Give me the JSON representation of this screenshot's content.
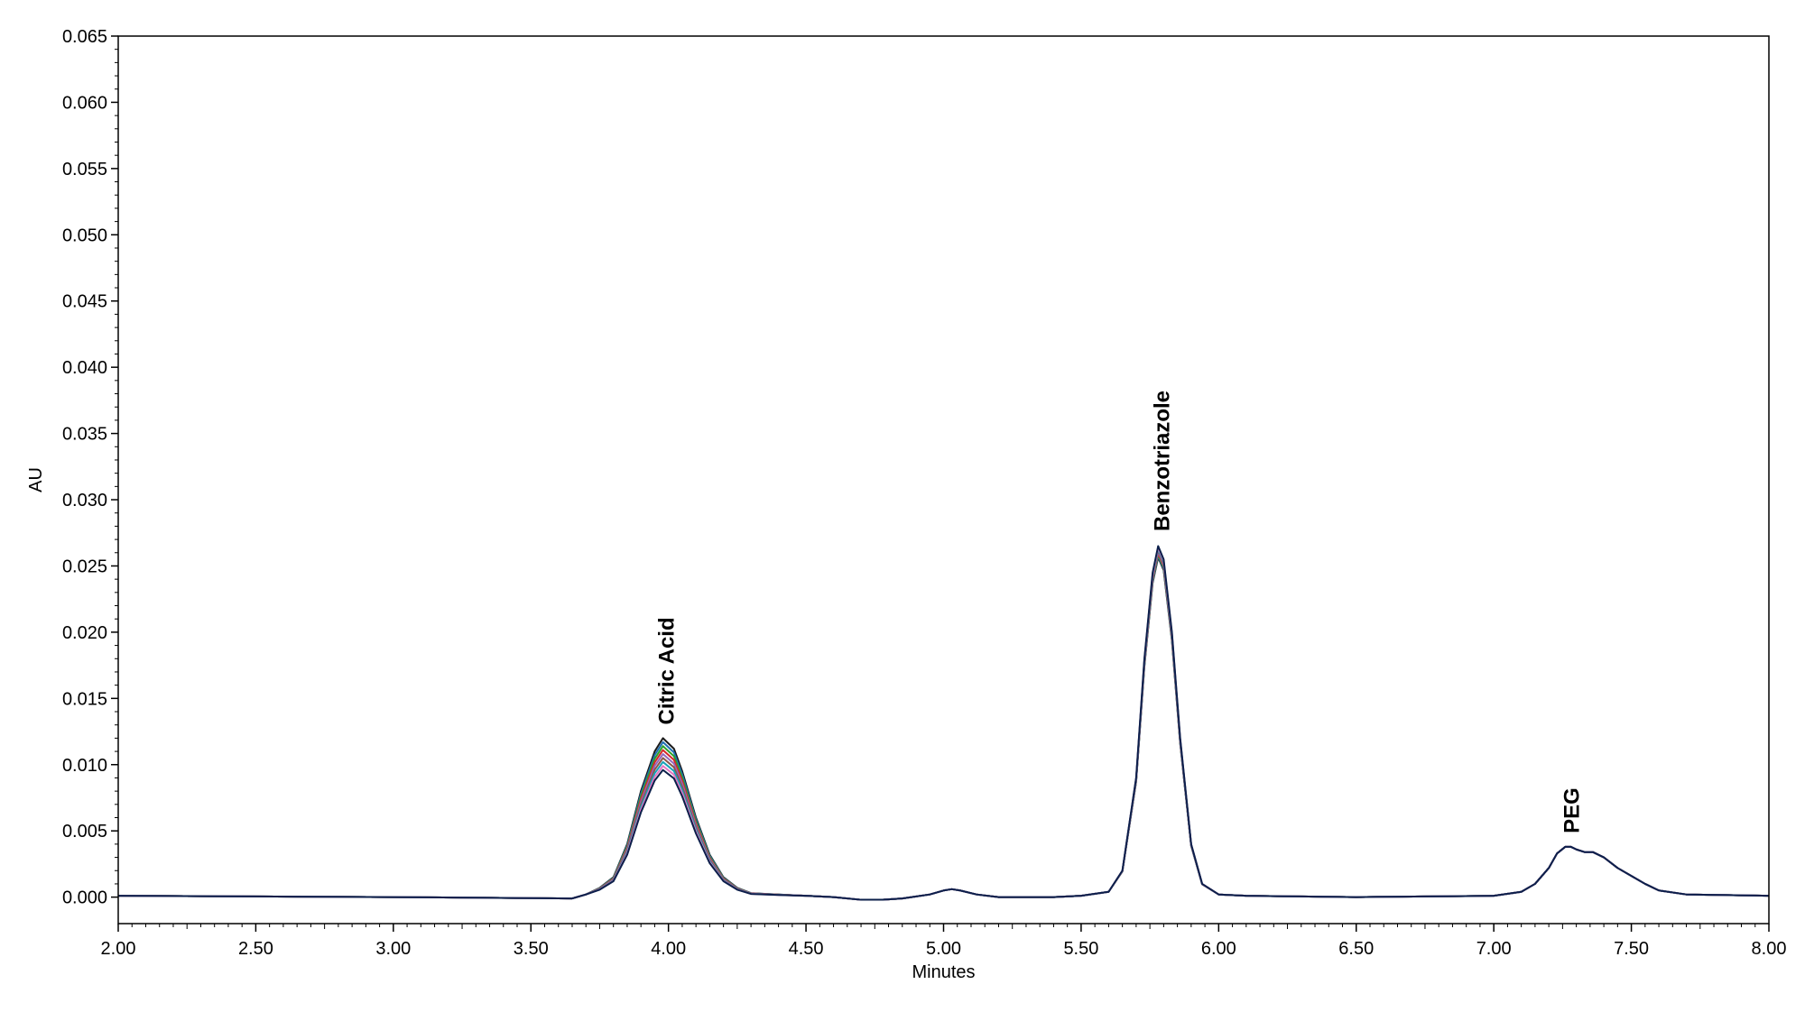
{
  "chart_data": {
    "type": "line",
    "title": "",
    "xlabel": "Minutes",
    "ylabel": "AU",
    "xlim": [
      2.0,
      8.0
    ],
    "ylim": [
      -0.002,
      0.065
    ],
    "grid": false,
    "legend": "none",
    "x_ticks": [
      2.0,
      2.5,
      3.0,
      3.5,
      4.0,
      4.5,
      5.0,
      5.5,
      6.0,
      6.5,
      7.0,
      7.5,
      8.0
    ],
    "x_tick_labels": [
      "2.00",
      "2.50",
      "3.00",
      "3.50",
      "4.00",
      "4.50",
      "5.00",
      "5.50",
      "6.00",
      "6.50",
      "7.00",
      "7.50",
      "8.00"
    ],
    "y_ticks": [
      0.0,
      0.005,
      0.01,
      0.015,
      0.02,
      0.025,
      0.03,
      0.035,
      0.04,
      0.045,
      0.05,
      0.055,
      0.06,
      0.065
    ],
    "y_tick_labels": [
      "0.000",
      "0.005",
      "0.010",
      "0.015",
      "0.020",
      "0.025",
      "0.030",
      "0.035",
      "0.040",
      "0.045",
      "0.050",
      "0.055",
      "0.060",
      "0.065"
    ],
    "series_colors": [
      "#1a1a1a",
      "#1f6fb2",
      "#2ca02c",
      "#d62728",
      "#9467bd",
      "#8c564b",
      "#17a2b8",
      "#e377c2",
      "#0b1f4a"
    ],
    "overlay_heights": [
      0.012,
      0.0117,
      0.0114,
      0.0111,
      0.0108,
      0.0105,
      0.0102,
      0.0099,
      0.0096
    ],
    "series": [
      {
        "x": [
          2.0,
          3.0,
          3.65,
          3.7,
          3.75,
          3.8,
          3.85,
          3.9,
          3.95,
          3.98,
          4.02,
          4.05,
          4.1,
          4.15,
          4.2,
          4.25,
          4.3,
          4.4,
          4.5,
          4.6,
          4.7,
          4.78,
          4.85,
          4.95,
          5.0,
          5.03,
          5.06,
          5.12,
          5.2,
          5.3,
          5.4,
          5.5,
          5.6,
          5.65,
          5.7,
          5.73,
          5.76,
          5.78,
          5.8,
          5.83,
          5.86,
          5.9,
          5.94,
          6.0,
          6.1,
          6.5,
          7.0,
          7.1,
          7.15,
          7.2,
          7.23,
          7.26,
          7.28,
          7.3,
          7.33,
          7.36,
          7.4,
          7.45,
          7.5,
          7.55,
          7.6,
          7.7,
          8.0
        ],
        "y": [
          0.0001,
          0.0,
          -0.0001,
          0.0002,
          0.0007,
          0.0015,
          0.004,
          0.008,
          0.011,
          0.012,
          0.0112,
          0.0095,
          0.006,
          0.0032,
          0.0015,
          0.0007,
          0.0003,
          0.0002,
          0.0001,
          0.0,
          -0.0002,
          -0.0002,
          -0.0001,
          0.0002,
          0.0005,
          0.0006,
          0.0005,
          0.0002,
          0.0,
          0.0,
          0.0,
          0.0001,
          0.0004,
          0.002,
          0.009,
          0.018,
          0.0245,
          0.0265,
          0.0255,
          0.02,
          0.012,
          0.004,
          0.001,
          0.0002,
          0.0001,
          0.0,
          0.0001,
          0.0004,
          0.001,
          0.0022,
          0.0033,
          0.0038,
          0.0038,
          0.0036,
          0.0034,
          0.0034,
          0.003,
          0.0022,
          0.0016,
          0.001,
          0.0005,
          0.0002,
          0.0001
        ]
      }
    ],
    "annotations": [
      {
        "text": "Citric Acid",
        "x": 3.99,
        "y": 0.0122
      },
      {
        "text": "Benzotriazole",
        "x": 5.79,
        "y": 0.0268
      },
      {
        "text": "PEG",
        "x": 7.28,
        "y": 0.004
      }
    ]
  }
}
